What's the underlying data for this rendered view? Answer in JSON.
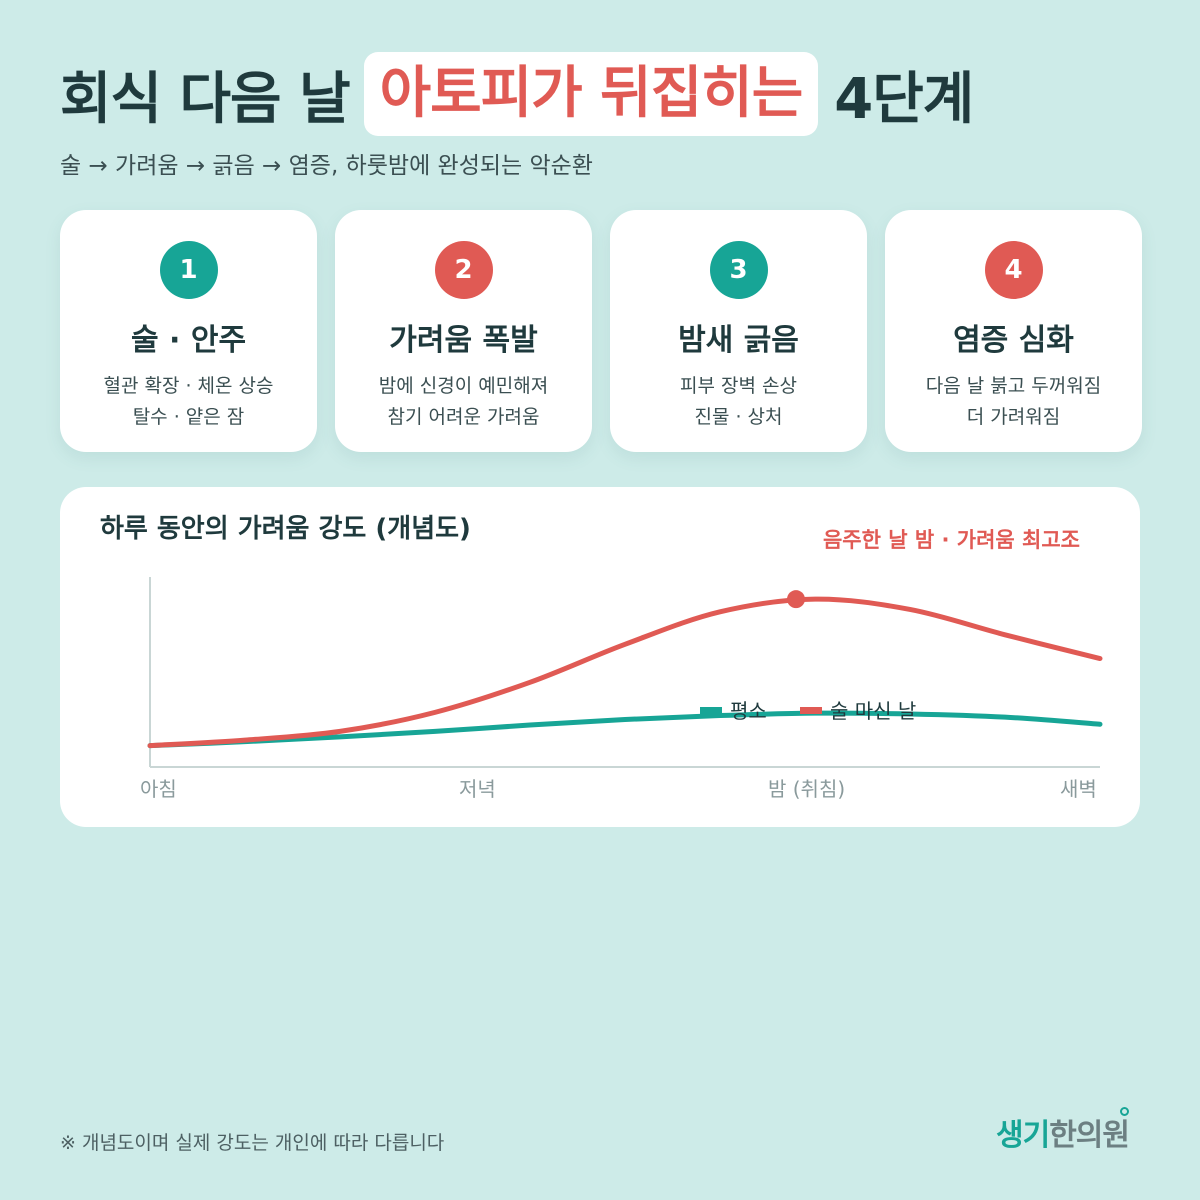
{
  "header": {
    "title_pre": "회식 다음 날",
    "title_highlight": "아토피가 뒤집히는",
    "title_post": "4단계",
    "subtitle": "술 → 가려움 → 긁음 → 염증, 하룻밤에 완성되는 악순환"
  },
  "steps": [
    {
      "number": "1",
      "title": "술 · 안주",
      "desc1": "혈관 확장 · 체온 상승",
      "desc2": "탈수 · 얕은 잠",
      "color": "#17a596"
    },
    {
      "number": "2",
      "title": "가려움 폭발",
      "desc1": "밤에 신경이 예민해져",
      "desc2": "참기 어려운 가려움",
      "color": "#e05a54"
    },
    {
      "number": "3",
      "title": "밤새 긁음",
      "desc1": "피부 장벽 손상",
      "desc2": "진물 · 상처",
      "color": "#17a596"
    },
    {
      "number": "4",
      "title": "염증 심화",
      "desc1": "다음 날 붉고 두꺼워짐",
      "desc2": "더 가려워짐",
      "color": "#e05a54"
    }
  ],
  "chart_data": {
    "type": "line",
    "title": "하루 동안의 가려움 강도 (개념도)",
    "categories": [
      "아침",
      "저녁",
      "밤 (취침)",
      "새벽"
    ],
    "x": [
      0,
      0.1,
      0.2,
      0.3,
      0.4,
      0.5,
      0.6,
      0.7,
      0.8,
      0.9,
      1.0
    ],
    "series": [
      {
        "name": "평소",
        "color": "#17a596",
        "values": [
          0.27,
          0.32,
          0.38,
          0.45,
          0.53,
          0.6,
          0.65,
          0.68,
          0.67,
          0.63,
          0.54
        ]
      },
      {
        "name": "술 마신 날",
        "color": "#e05a54",
        "values": [
          0.27,
          0.34,
          0.45,
          0.69,
          1.07,
          1.55,
          1.96,
          2.12,
          1.99,
          1.67,
          1.37
        ]
      }
    ],
    "ylim": [
      0,
      2.4
    ],
    "annotation": {
      "text": "음주한 날 밤 · 가려움 최고조",
      "x": 0.68,
      "y": 2.12
    },
    "legend_position": "center-right",
    "grid": false
  },
  "footnote": "※ 개념도이며 실제 강도는 개인에 따라 다릅니다",
  "logo": {
    "part1": "생기",
    "part2": "한의원"
  },
  "colors": {
    "background": "#cdebe8",
    "teal": "#17a596",
    "red": "#e05a54",
    "ink": "#1f3a3d"
  }
}
